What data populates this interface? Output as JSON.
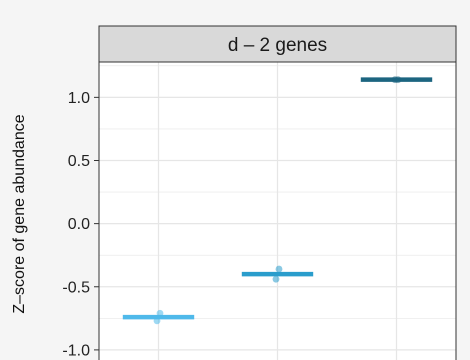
{
  "chart_data": {
    "type": "crossbar",
    "facet_title": "d – 2 genes",
    "ylabel": "Z–score of gene abundance",
    "xlabel": "",
    "ylim": [
      -1.08,
      1.28
    ],
    "yticks": [
      1.0,
      0.5,
      0.0,
      -0.5,
      -1.0
    ],
    "ytick_labels": [
      "1.0",
      "0.5",
      "0.0",
      "-0.5",
      "-1.0"
    ],
    "grid": true,
    "groups": [
      {
        "position": 1,
        "mean": -0.74,
        "points": [
          -0.71,
          -0.77
        ],
        "color": "#4fb9ea"
      },
      {
        "position": 2,
        "mean": -0.4,
        "points": [
          -0.36,
          -0.44
        ],
        "color": "#2a9dcc"
      },
      {
        "position": 3,
        "mean": 1.14,
        "points": [
          1.14,
          1.14
        ],
        "color": "#1c6580"
      }
    ],
    "colors": {
      "background": "#f5f5f5",
      "panel": "#ffffff",
      "grid": "#e6e6e6",
      "strip": "#d9d9d9",
      "border": "#333333"
    }
  }
}
